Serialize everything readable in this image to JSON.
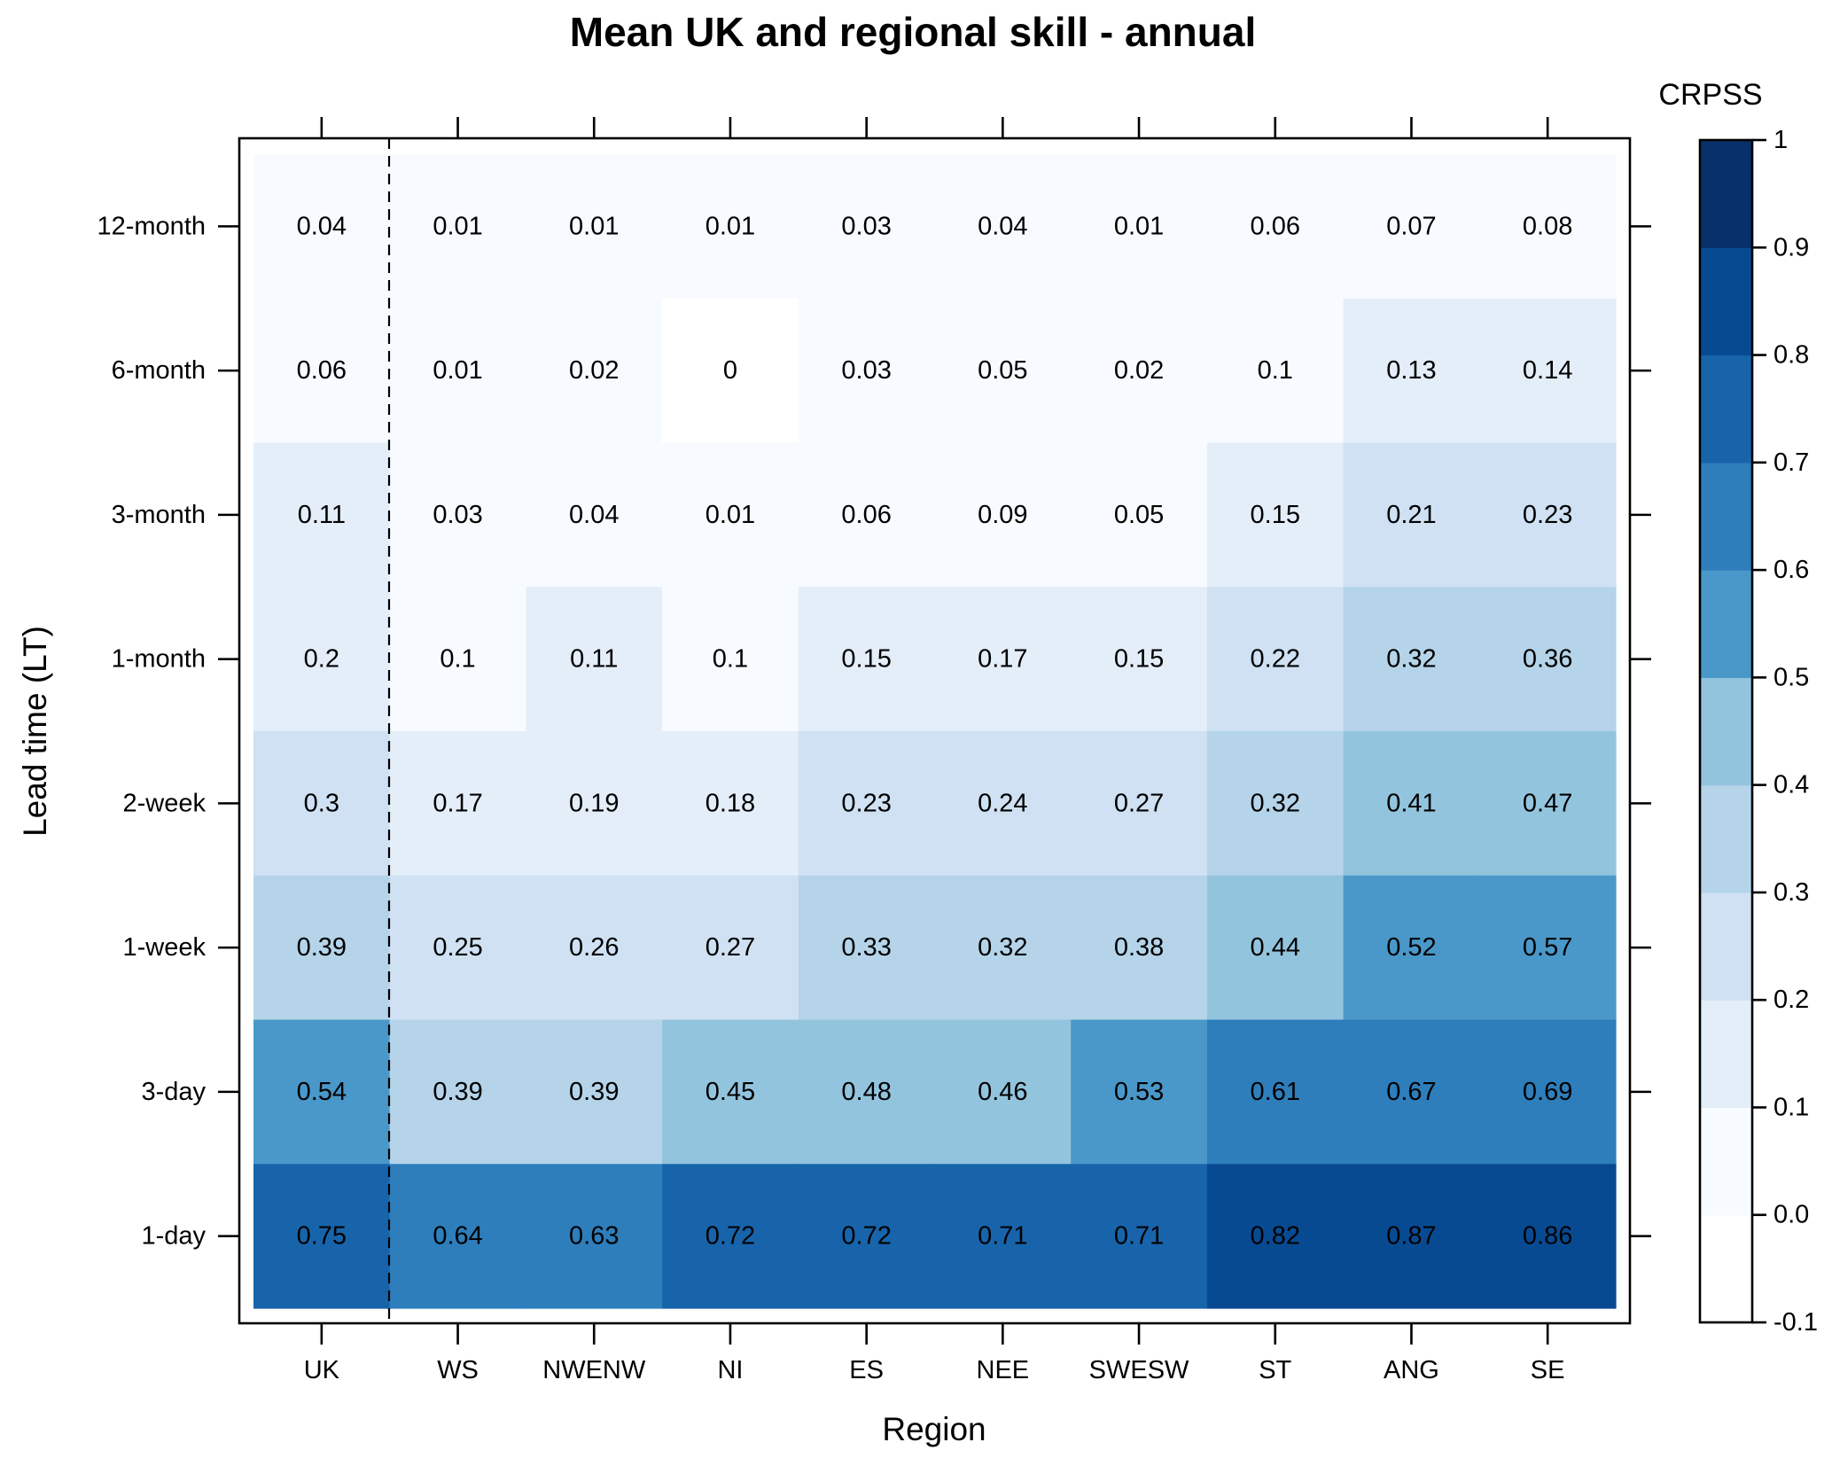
{
  "chart_data": {
    "type": "heatmap",
    "title": "Mean UK and regional skill - annual",
    "xlabel": "Region",
    "ylabel": "Lead time (LT)",
    "x_categories": [
      "UK",
      "WS",
      "NWENW",
      "NI",
      "ES",
      "NEE",
      "SWESW",
      "ST",
      "ANG",
      "SE"
    ],
    "y_categories": [
      "12-month",
      "6-month",
      "3-month",
      "1-month",
      "2-week",
      "1-week",
      "3-day",
      "1-day"
    ],
    "values": [
      [
        0.04,
        0.01,
        0.01,
        0.01,
        0.03,
        0.04,
        0.01,
        0.06,
        0.07,
        0.08
      ],
      [
        0.06,
        0.01,
        0.02,
        0,
        0.03,
        0.05,
        0.02,
        0.1,
        0.13,
        0.14
      ],
      [
        0.11,
        0.03,
        0.04,
        0.01,
        0.06,
        0.09,
        0.05,
        0.15,
        0.21,
        0.23
      ],
      [
        0.2,
        0.1,
        0.11,
        0.1,
        0.15,
        0.17,
        0.15,
        0.22,
        0.32,
        0.36
      ],
      [
        0.3,
        0.17,
        0.19,
        0.18,
        0.23,
        0.24,
        0.27,
        0.32,
        0.41,
        0.47
      ],
      [
        0.39,
        0.25,
        0.26,
        0.27,
        0.33,
        0.32,
        0.38,
        0.44,
        0.52,
        0.57
      ],
      [
        0.54,
        0.39,
        0.39,
        0.45,
        0.48,
        0.46,
        0.53,
        0.61,
        0.67,
        0.69
      ],
      [
        0.75,
        0.64,
        0.63,
        0.72,
        0.72,
        0.71,
        0.71,
        0.82,
        0.87,
        0.86
      ]
    ],
    "colorbar": {
      "title": "CRPSS",
      "range": [
        -0.1,
        1
      ],
      "tick_labels": [
        "-0.1",
        "0.0",
        "0.1",
        "0.2",
        "0.3",
        "0.4",
        "0.5",
        "0.6",
        "0.7",
        "0.8",
        "0.9",
        "1"
      ],
      "colors": [
        "#ffffff",
        "#f7fbff",
        "#e3eef9",
        "#cfe1f2",
        "#b5d4e9",
        "#93c4de",
        "#4a98c9",
        "#2e7ebc",
        "#1764ab",
        "#084a92",
        "#08306b"
      ]
    },
    "separator_after_category": "UK",
    "grid": false
  }
}
